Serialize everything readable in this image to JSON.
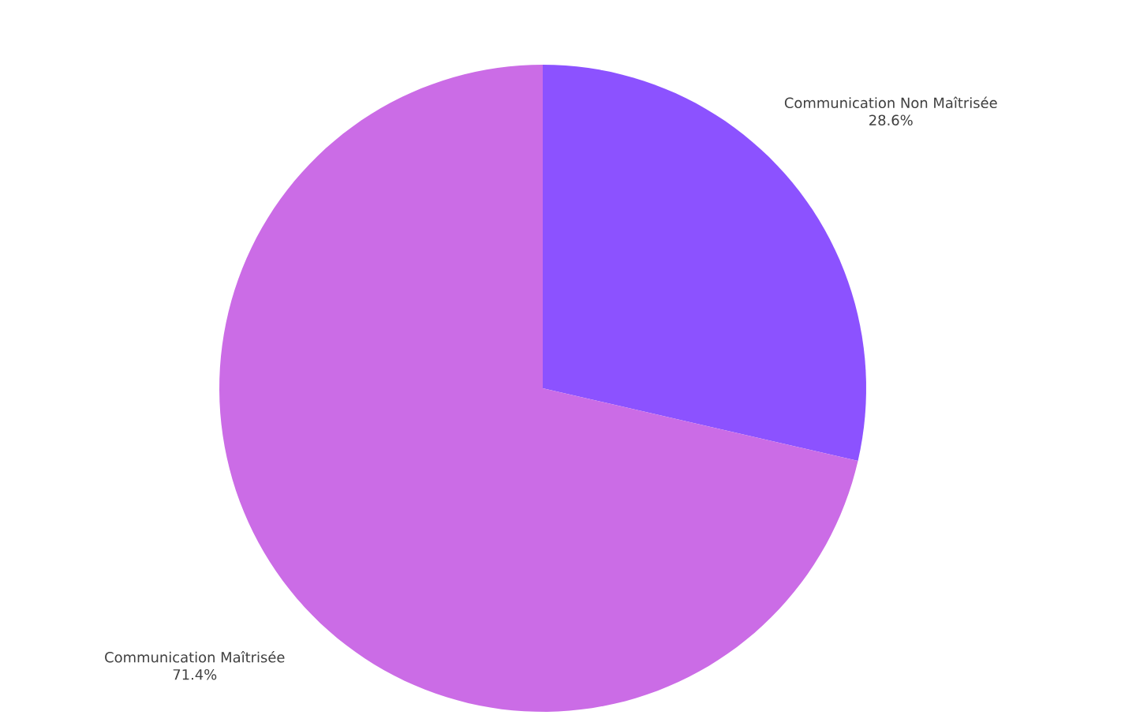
{
  "chart_data": {
    "type": "pie",
    "categories": [
      "Communication Non Maîtrisée",
      "Communication Maîtrisée"
    ],
    "values": [
      28.6,
      71.4
    ],
    "colors": [
      "#8c52ff",
      "#cb6ce6"
    ],
    "value_labels": [
      "28.6%",
      "71.4%"
    ]
  }
}
